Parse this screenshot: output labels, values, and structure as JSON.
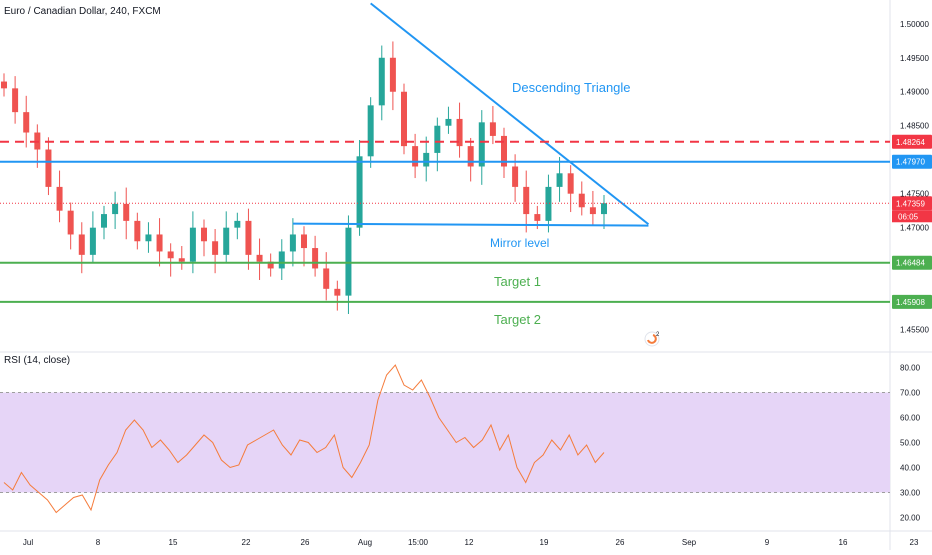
{
  "header": {
    "symbol_title": "Euro / Canadian Dollar, 240, FXCM"
  },
  "rsi": {
    "title": "RSI (14, close)"
  },
  "watermark_icon": "tradingview-badge-icon",
  "chart_data": [
    {
      "type": "candlestick",
      "title": "Euro / Canadian Dollar, 240, FXCM",
      "ylim": [
        1.452,
        1.5035
      ],
      "y_ticks": [
        "1.50000",
        "1.49500",
        "1.49000",
        "1.48500",
        "1.47500",
        "1.47000",
        "1.45500"
      ],
      "x_ticks": [
        "Jul",
        "8",
        "15",
        "22",
        "26",
        "Aug",
        "15:00",
        "12",
        "19",
        "26",
        "Sep",
        "9",
        "16",
        "23"
      ],
      "ohlc_close_path": [
        [
          "Jul 1",
          1.4905
        ],
        [
          "Jul 2",
          1.487
        ],
        [
          "Jul 3",
          1.484
        ],
        [
          "Jul 4",
          1.4815
        ],
        [
          "Jul 5",
          1.476
        ],
        [
          "Jul 6",
          1.4725
        ],
        [
          "Jul 7",
          1.469
        ],
        [
          "Jul 8",
          1.466
        ],
        [
          "Jul 9",
          1.47
        ],
        [
          "Jul 10",
          1.472
        ],
        [
          "Jul 11",
          1.4735
        ],
        [
          "Jul 12",
          1.471
        ],
        [
          "Jul 13",
          1.468
        ],
        [
          "Jul 14",
          1.469
        ],
        [
          "Jul 15",
          1.4665
        ],
        [
          "Jul 16",
          1.4655
        ],
        [
          "Jul 17",
          1.465
        ],
        [
          "Jul 18",
          1.47
        ],
        [
          "Jul 19",
          1.468
        ],
        [
          "Jul 20",
          1.466
        ],
        [
          "Jul 21",
          1.47
        ],
        [
          "Jul 22",
          1.471
        ],
        [
          "Jul 23",
          1.466
        ],
        [
          "Jul 24",
          1.465
        ],
        [
          "Jul 25",
          1.464
        ],
        [
          "Jul 26",
          1.4665
        ],
        [
          "Jul 27",
          1.469
        ],
        [
          "Jul 28",
          1.467
        ],
        [
          "Jul 29",
          1.464
        ],
        [
          "Jul 30",
          1.461
        ],
        [
          "Jul 31",
          1.46
        ],
        [
          "Aug 1",
          1.47
        ],
        [
          "Aug 2",
          1.4805
        ],
        [
          "Aug 3",
          1.488
        ],
        [
          "Aug 4",
          1.495
        ],
        [
          "Aug 5",
          1.49
        ],
        [
          "Aug 6",
          1.482
        ],
        [
          "Aug 7",
          1.479
        ],
        [
          "Aug 8",
          1.481
        ],
        [
          "Aug 9",
          1.485
        ],
        [
          "Aug 10",
          1.486
        ],
        [
          "Aug 11",
          1.482
        ],
        [
          "Aug 12",
          1.479
        ],
        [
          "Aug 13",
          1.4855
        ],
        [
          "Aug 14",
          1.4835
        ],
        [
          "Aug 15",
          1.479
        ],
        [
          "Aug 16",
          1.476
        ],
        [
          "Aug 17",
          1.472
        ],
        [
          "Aug 18",
          1.471
        ],
        [
          "Aug 19",
          1.476
        ],
        [
          "Aug 20",
          1.478
        ],
        [
          "Aug 21",
          1.475
        ],
        [
          "Aug 22",
          1.473
        ],
        [
          "Aug 23",
          1.472
        ],
        [
          "Aug 24",
          1.4736
        ]
      ],
      "price_levels": [
        {
          "label": "1.48264",
          "value": 1.48264,
          "style": "dashed",
          "color": "#f23645"
        },
        {
          "label": "1.47970",
          "value": 1.4797,
          "style": "solid",
          "color": "#2196f3"
        },
        {
          "label": "1.47359",
          "value": 1.47359,
          "style": "dotted",
          "color": "#f23645",
          "countdown": "06:05"
        },
        {
          "label": "1.46484",
          "value": 1.46484,
          "style": "solid",
          "color": "#4caf50"
        },
        {
          "label": "1.45908",
          "value": 1.45908,
          "style": "solid",
          "color": "#4caf50"
        }
      ],
      "annotations": [
        {
          "text": "Descending Triangle",
          "color": "#2196f3"
        },
        {
          "text": "Mirror level",
          "color": "#2196f3"
        },
        {
          "text": "Target 1",
          "color": "#4caf50"
        },
        {
          "text": "Target 2",
          "color": "#4caf50"
        }
      ],
      "drawings": [
        {
          "name": "triangle-upper-trendline",
          "from": [
            "Aug 3",
            1.503
          ],
          "to": [
            "Aug 28",
            1.4705
          ]
        },
        {
          "name": "mirror-level-line",
          "from": [
            "Jul 27",
            1.4706
          ],
          "to": [
            "Aug 28",
            1.4703
          ]
        }
      ],
      "colors": {
        "up": "#26a69a",
        "down": "#ef5350"
      }
    },
    {
      "type": "line",
      "title": "RSI (14, close)",
      "ylim": [
        15,
        85
      ],
      "y_ticks": [
        "80.00",
        "70.00",
        "60.00",
        "50.00",
        "40.00",
        "30.00",
        "20.00"
      ],
      "band": [
        30,
        70
      ],
      "band_color": "#e6d5f7",
      "line_color": "#f57c3c",
      "series": [
        {
          "values": [
            34,
            31,
            38,
            33,
            30,
            27,
            22,
            25,
            28,
            29,
            23,
            35,
            41,
            46,
            55,
            59,
            55,
            48,
            51,
            47,
            42,
            45,
            49,
            53,
            50,
            43,
            40,
            41,
            49,
            51,
            53,
            55,
            49,
            45,
            51,
            50,
            46,
            48,
            53,
            40,
            36,
            42,
            49,
            67,
            77,
            81,
            73,
            71,
            75,
            68,
            60,
            55,
            50,
            52,
            48,
            51,
            57,
            47,
            53,
            40,
            34,
            42,
            45,
            51,
            47,
            53,
            45,
            49,
            42,
            46
          ]
        }
      ]
    }
  ]
}
